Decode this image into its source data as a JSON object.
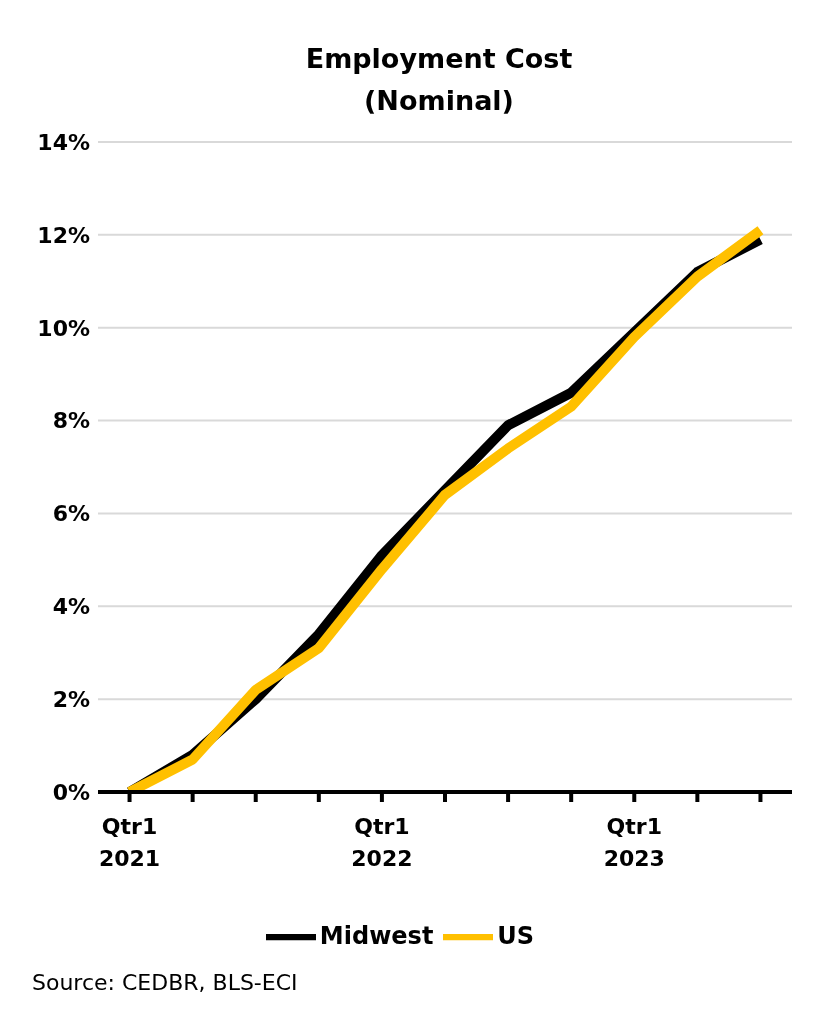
{
  "chart_data": {
    "type": "line",
    "title": "Employment Cost\n(Nominal)",
    "categories": [
      "Qtr1 2021",
      null,
      null,
      null,
      "Qtr1 2022",
      null,
      null,
      null,
      "Qtr1 2023",
      null,
      null
    ],
    "series": [
      {
        "name": "Midwest",
        "color": "#000000",
        "values": [
          0,
          0.8,
          2.0,
          3.4,
          5.1,
          6.5,
          7.9,
          8.6,
          9.9,
          11.2,
          11.9
        ]
      },
      {
        "name": "US",
        "color": "#ffc000",
        "values": [
          0,
          0.7,
          2.2,
          3.1,
          4.8,
          6.4,
          7.4,
          8.3,
          9.8,
          11.1,
          12.1
        ]
      }
    ],
    "ylim": [
      0,
      14
    ],
    "yticks": [
      {
        "value": 0,
        "label": "0%"
      },
      {
        "value": 2,
        "label": "2%"
      },
      {
        "value": 4,
        "label": "4%"
      },
      {
        "value": 6,
        "label": "6%"
      },
      {
        "value": 8,
        "label": "8%"
      },
      {
        "value": 10,
        "label": "10%"
      },
      {
        "value": 12,
        "label": "12%"
      },
      {
        "value": 14,
        "label": "14%"
      }
    ],
    "grid": "y",
    "legend": "bottom",
    "marker": "none",
    "line_style": "solid",
    "annotations": [
      "Source: CEDBR, BLS-ECI"
    ]
  }
}
